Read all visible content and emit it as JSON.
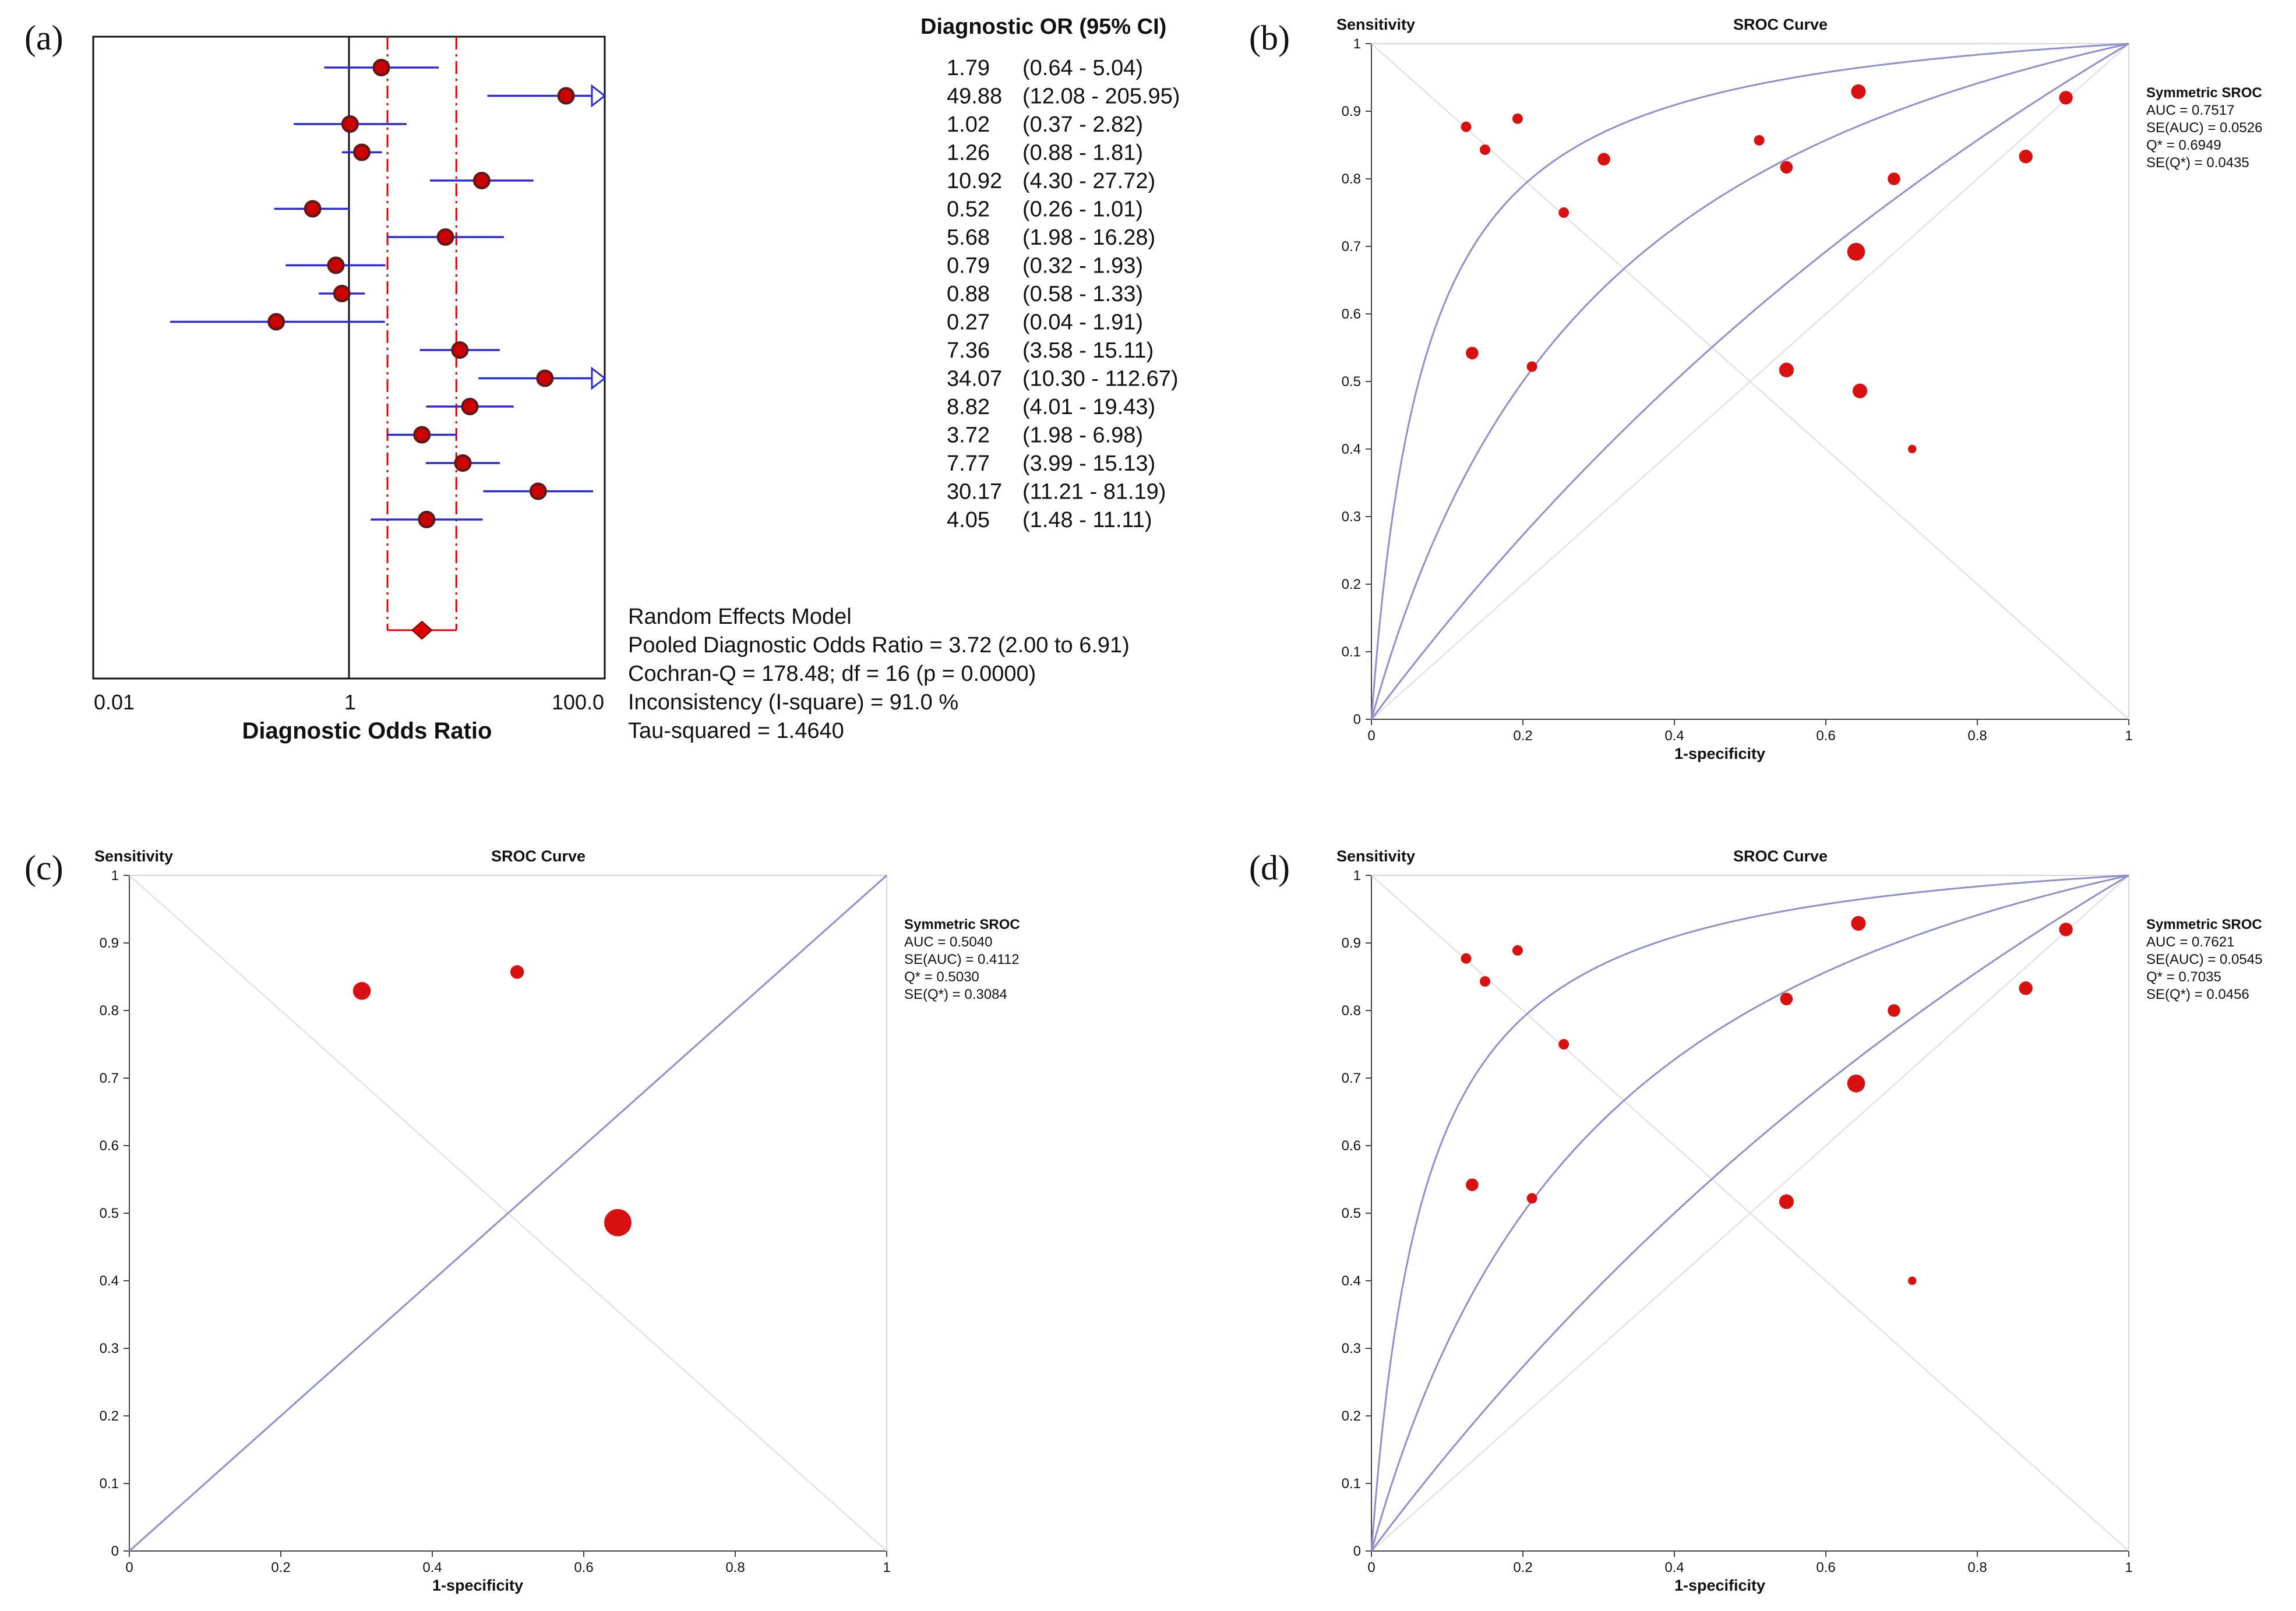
{
  "colors": {
    "ci_line": "#2b2bd6",
    "marker_fill": "#cc0000",
    "marker_stroke": "#5a1a1a",
    "pooled": "#e00000",
    "curve": "#8f8fcc",
    "grid": "#dcdce4",
    "point": "#d81010"
  },
  "forest": {
    "panel_label": "(a)",
    "xlabel": "Diagnostic Odds Ratio",
    "ticks": [
      "0.01",
      "1",
      "100.0"
    ],
    "or_header": "Diagnostic OR (95% CI)",
    "studies": [
      {
        "or": "1.79",
        "ci": "(0.64 - 5.04)"
      },
      {
        "or": "49.88",
        "ci": "(12.08 - 205.95)"
      },
      {
        "or": "1.02",
        "ci": "(0.37 - 2.82)"
      },
      {
        "or": "1.26",
        "ci": "(0.88 - 1.81)"
      },
      {
        "or": "10.92",
        "ci": "(4.30 - 27.72)"
      },
      {
        "or": "0.52",
        "ci": "(0.26 - 1.01)"
      },
      {
        "or": "5.68",
        "ci": "(1.98 - 16.28)"
      },
      {
        "or": "0.79",
        "ci": "(0.32 - 1.93)"
      },
      {
        "or": "0.88",
        "ci": "(0.58 - 1.33)"
      },
      {
        "or": "0.27",
        "ci": "(0.04 - 1.91)"
      },
      {
        "or": "7.36",
        "ci": "(3.58 - 15.11)"
      },
      {
        "or": "34.07",
        "ci": "(10.30 - 112.67)"
      },
      {
        "or": "8.82",
        "ci": "(4.01 - 19.43)"
      },
      {
        "or": "3.72",
        "ci": "(1.98 - 6.98)"
      },
      {
        "or": "7.77",
        "ci": "(3.99 - 15.13)"
      },
      {
        "or": "30.17",
        "ci": "(11.21 - 81.19)"
      },
      {
        "or": "4.05",
        "ci": "(1.48 - 11.11)"
      }
    ],
    "stats": {
      "model": "Random Effects Model",
      "pooled": "Pooled Diagnostic Odds Ratio = 3.72 (2.00 to 6.91)",
      "cochran": "Cochran-Q = 178.48; df =  16 (p = 0.0000)",
      "inconsistency": "Inconsistency (I-square) = 91.0 %",
      "tau": "Tau-squared = 1.4640"
    }
  },
  "chart_data": [
    {
      "type": "forest",
      "xlabel": "Diagnostic Odds Ratio",
      "xscale": "log",
      "xlim": [
        0.01,
        100
      ],
      "studies": [
        {
          "or": 1.79,
          "lo": 0.64,
          "hi": 5.04
        },
        {
          "or": 49.88,
          "lo": 12.08,
          "hi": 205.95
        },
        {
          "or": 1.02,
          "lo": 0.37,
          "hi": 2.82
        },
        {
          "or": 1.26,
          "lo": 0.88,
          "hi": 1.81
        },
        {
          "or": 10.92,
          "lo": 4.3,
          "hi": 27.72
        },
        {
          "or": 0.52,
          "lo": 0.26,
          "hi": 1.01
        },
        {
          "or": 5.68,
          "lo": 1.98,
          "hi": 16.28
        },
        {
          "or": 0.79,
          "lo": 0.32,
          "hi": 1.93
        },
        {
          "or": 0.88,
          "lo": 0.58,
          "hi": 1.33
        },
        {
          "or": 0.27,
          "lo": 0.04,
          "hi": 1.91
        },
        {
          "or": 7.36,
          "lo": 3.58,
          "hi": 15.11
        },
        {
          "or": 34.07,
          "lo": 10.3,
          "hi": 112.67
        },
        {
          "or": 8.82,
          "lo": 4.01,
          "hi": 19.43
        },
        {
          "or": 3.72,
          "lo": 1.98,
          "hi": 6.98
        },
        {
          "or": 7.77,
          "lo": 3.99,
          "hi": 15.13
        },
        {
          "or": 30.17,
          "lo": 11.21,
          "hi": 81.19
        },
        {
          "or": 4.05,
          "lo": 1.48,
          "hi": 11.11
        }
      ],
      "pooled": {
        "or": 3.72,
        "lo": 2.0,
        "hi": 6.91
      }
    },
    {
      "type": "scatter",
      "panel_label": "(b)",
      "title": "SROC Curve",
      "xlabel": "1-specificity",
      "ylabel": "Sensitivity",
      "xlim": [
        0,
        1
      ],
      "ylim": [
        0,
        1
      ],
      "xticks": [
        "0",
        "0.2",
        "0.4",
        "0.6",
        "0.8",
        "1"
      ],
      "yticks": [
        "0",
        "0.1",
        "0.2",
        "0.3",
        "0.4",
        "0.5",
        "0.6",
        "0.7",
        "0.8",
        "0.9",
        "1"
      ],
      "curves": [
        15,
        4,
        1.5
      ],
      "stats": {
        "head": "Symmetric SROC",
        "lines": [
          "AUC = 0.7517",
          "SE(AUC) = 0.0526",
          "Q* = 0.6949",
          "SE(Q*) = 0.0435"
        ]
      },
      "points": [
        {
          "x": 0.125,
          "y": 0.877,
          "s": 1
        },
        {
          "x": 0.15,
          "y": 0.843,
          "s": 1
        },
        {
          "x": 0.193,
          "y": 0.889,
          "s": 1
        },
        {
          "x": 0.307,
          "y": 0.829,
          "s": 1.2
        },
        {
          "x": 0.254,
          "y": 0.75,
          "s": 1
        },
        {
          "x": 0.512,
          "y": 0.857,
          "s": 1
        },
        {
          "x": 0.548,
          "y": 0.817,
          "s": 1.2
        },
        {
          "x": 0.643,
          "y": 0.929,
          "s": 1.4
        },
        {
          "x": 0.69,
          "y": 0.8,
          "s": 1.2
        },
        {
          "x": 0.64,
          "y": 0.692,
          "s": 1.7
        },
        {
          "x": 0.864,
          "y": 0.833,
          "s": 1.3
        },
        {
          "x": 0.917,
          "y": 0.92,
          "s": 1.3
        },
        {
          "x": 0.133,
          "y": 0.542,
          "s": 1.2
        },
        {
          "x": 0.212,
          "y": 0.522,
          "s": 1
        },
        {
          "x": 0.548,
          "y": 0.517,
          "s": 1.4
        },
        {
          "x": 0.645,
          "y": 0.486,
          "s": 1.4
        },
        {
          "x": 0.714,
          "y": 0.4,
          "s": 0.8
        }
      ]
    },
    {
      "type": "scatter",
      "panel_label": "(c)",
      "title": "SROC Curve",
      "xlabel": "1-specificity",
      "ylabel": "Sensitivity",
      "xlim": [
        0,
        1
      ],
      "ylim": [
        0,
        1
      ],
      "xticks": [
        "0",
        "0.2",
        "0.4",
        "0.6",
        "0.8",
        "1"
      ],
      "yticks": [
        "0",
        "0.1",
        "0.2",
        "0.3",
        "0.4",
        "0.5",
        "0.6",
        "0.7",
        "0.8",
        "0.9",
        "1"
      ],
      "curves": [
        1
      ],
      "stats": {
        "head": "Symmetric SROC",
        "lines": [
          "AUC = 0.5040",
          "SE(AUC) = 0.4112",
          "Q* = 0.5030",
          "SE(Q*) = 0.3084"
        ]
      },
      "points": [
        {
          "x": 0.307,
          "y": 0.829,
          "s": 1.7
        },
        {
          "x": 0.512,
          "y": 0.857,
          "s": 1.3
        },
        {
          "x": 0.645,
          "y": 0.486,
          "s": 2.6
        }
      ]
    },
    {
      "type": "scatter",
      "panel_label": "(d)",
      "title": "SROC Curve",
      "xlabel": "1-specificity",
      "ylabel": "Sensitivity",
      "xlim": [
        0,
        1
      ],
      "ylim": [
        0,
        1
      ],
      "xticks": [
        "0",
        "0.2",
        "0.4",
        "0.6",
        "0.8",
        "1"
      ],
      "yticks": [
        "0",
        "0.1",
        "0.2",
        "0.3",
        "0.4",
        "0.5",
        "0.6",
        "0.7",
        "0.8",
        "0.9",
        "1"
      ],
      "curves": [
        15,
        4,
        1.5
      ],
      "stats": {
        "head": "Symmetric SROC",
        "lines": [
          "AUC = 0.7621",
          "SE(AUC) = 0.0545",
          "Q* = 0.7035",
          "SE(Q*) = 0.0456"
        ]
      },
      "points": [
        {
          "x": 0.125,
          "y": 0.877,
          "s": 1
        },
        {
          "x": 0.15,
          "y": 0.843,
          "s": 1
        },
        {
          "x": 0.193,
          "y": 0.889,
          "s": 1
        },
        {
          "x": 0.254,
          "y": 0.75,
          "s": 1
        },
        {
          "x": 0.548,
          "y": 0.817,
          "s": 1.2
        },
        {
          "x": 0.643,
          "y": 0.929,
          "s": 1.4
        },
        {
          "x": 0.69,
          "y": 0.8,
          "s": 1.2
        },
        {
          "x": 0.64,
          "y": 0.692,
          "s": 1.7
        },
        {
          "x": 0.864,
          "y": 0.833,
          "s": 1.3
        },
        {
          "x": 0.917,
          "y": 0.92,
          "s": 1.3
        },
        {
          "x": 0.133,
          "y": 0.542,
          "s": 1.2
        },
        {
          "x": 0.212,
          "y": 0.522,
          "s": 1
        },
        {
          "x": 0.548,
          "y": 0.517,
          "s": 1.4
        },
        {
          "x": 0.714,
          "y": 0.4,
          "s": 0.8
        }
      ]
    }
  ]
}
